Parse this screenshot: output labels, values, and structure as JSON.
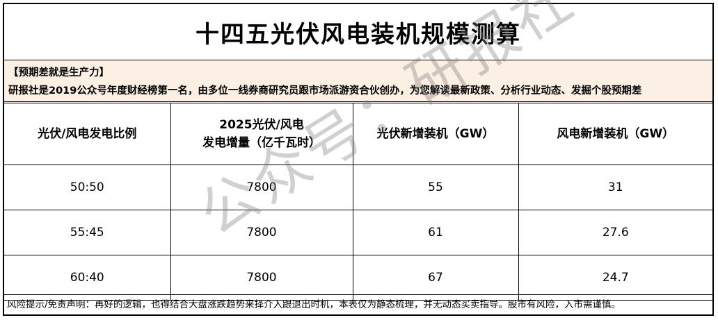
{
  "title": "十四五光伏风电装机规模测算",
  "promo": {
    "line1": "【预期差就是生产力】",
    "line2": "研报社是2019公众号年度财经榜第一名，由多位一线券商研究员跟市场派游资合伙创办，为您解读最新政策、分析行业动态、发掘个股预期差"
  },
  "table": {
    "headers": [
      "光伏/风电发电比例",
      "2025光伏/风电\n发电增量（亿千瓦时）",
      "光伏新增装机（GW）",
      "风电新增装机（GW）"
    ],
    "rows": [
      [
        "50:50",
        "7800",
        "55",
        "31"
      ],
      [
        "55:45",
        "7800",
        "61",
        "27.6"
      ],
      [
        "60:40",
        "7800",
        "67",
        "24.7"
      ]
    ]
  },
  "footer": "风险提示/免责声明：再好的逻辑，也得结合大盘涨跌趋势来择介入跟退出时机，本表仅为静态梳理，并无动态买卖指导。股市有风险，入市需谨慎。",
  "watermark": "公众号：研报社"
}
